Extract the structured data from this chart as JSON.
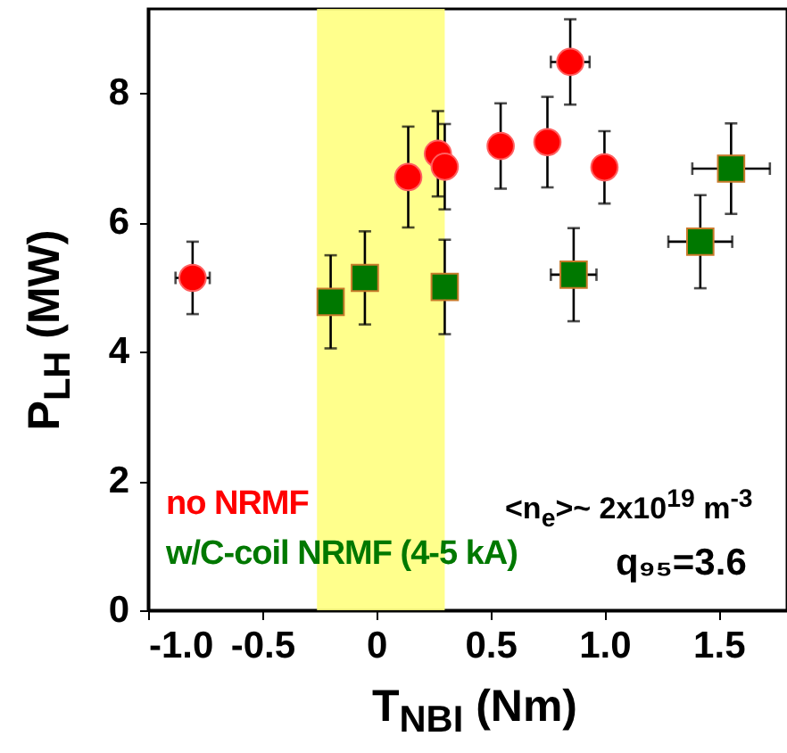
{
  "chart_data": {
    "type": "scatter",
    "xlabel": "T$_{NBI}$ (Nm)",
    "ylabel": "P$_{LH}$ (MW)",
    "xlim": [
      -1.0,
      1.8
    ],
    "ylim": [
      0,
      9.3
    ],
    "xticks": [
      {
        "value": -1,
        "label": "-1.0"
      },
      -0.5,
      0,
      0.5,
      {
        "value": 1,
        "label": "1.0"
      },
      1.5
    ],
    "yticks": [
      0,
      2,
      4,
      6,
      8
    ],
    "grid": false,
    "legend": "bottom left",
    "bands": [
      {
        "axis": "x",
        "from": -0.26,
        "to": 0.3,
        "color": "#ffff80"
      }
    ],
    "series": [
      {
        "name": "no NRMF",
        "color": "#ff0000",
        "marker": "circle",
        "x": [
          -0.805,
          0.14,
          0.27,
          0.3,
          0.545,
          0.75,
          0.85,
          1.0
        ],
        "values": [
          5.14,
          6.7,
          7.06,
          6.86,
          7.18,
          7.24,
          8.48,
          6.85
        ],
        "errors": [
          0.56,
          0.78,
          0.66,
          0.66,
          0.66,
          0.7,
          0.66,
          0.56
        ],
        "xerrors": [
          0.075,
          null,
          null,
          null,
          null,
          null,
          0.085,
          null
        ]
      },
      {
        "name": "w/C-coil NRMF (4-5 kA)",
        "color": "#007800",
        "marker": "square",
        "x": [
          -0.2,
          -0.05,
          0.3,
          0.865,
          1.42,
          1.555
        ],
        "values": [
          4.77,
          5.14,
          5.0,
          5.19,
          5.7,
          6.83
        ],
        "errors": [
          0.72,
          0.72,
          0.73,
          0.72,
          0.72,
          0.7
        ],
        "xerrors": [
          null,
          null,
          null,
          0.1,
          0.14,
          0.17
        ]
      }
    ],
    "annotations": [
      "<n$_{e}$>~ 2x10$^{19}$ m$^{-3}$",
      "q₉₅=3.6"
    ]
  }
}
